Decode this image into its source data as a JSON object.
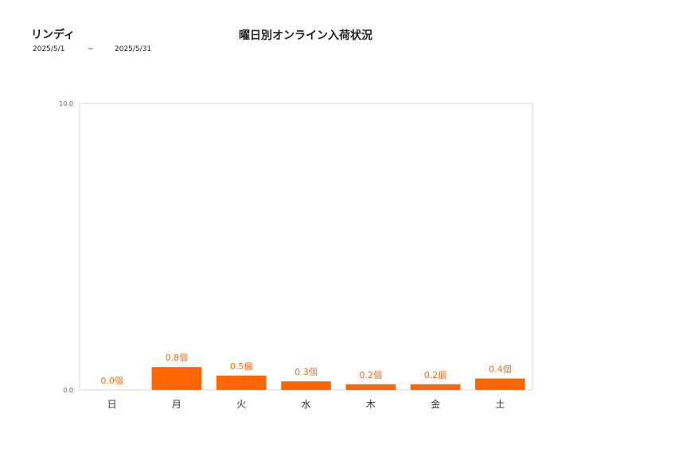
{
  "header": {
    "shop_name": "リンディ",
    "title": "曜日別オンライン入荷状況",
    "date_from": "2025/5/1",
    "date_separator": "~",
    "date_to": "2025/5/31"
  },
  "chart_data": {
    "type": "bar",
    "title": "曜日別オンライン入荷状況",
    "categories": [
      "日",
      "月",
      "火",
      "水",
      "木",
      "金",
      "土"
    ],
    "values": [
      0.0,
      0.8,
      0.5,
      0.3,
      0.2,
      0.2,
      0.4
    ],
    "data_labels": [
      "0.0個",
      "0.8個",
      "0.5個",
      "0.3個",
      "0.2個",
      "0.2個",
      "0.4個"
    ],
    "ylim": [
      0,
      10
    ],
    "y_ticks": [
      "0.0",
      "10.0"
    ],
    "bar_color": "#ff6600",
    "label_color": "#e8711c",
    "grid": false,
    "legend": "none"
  }
}
